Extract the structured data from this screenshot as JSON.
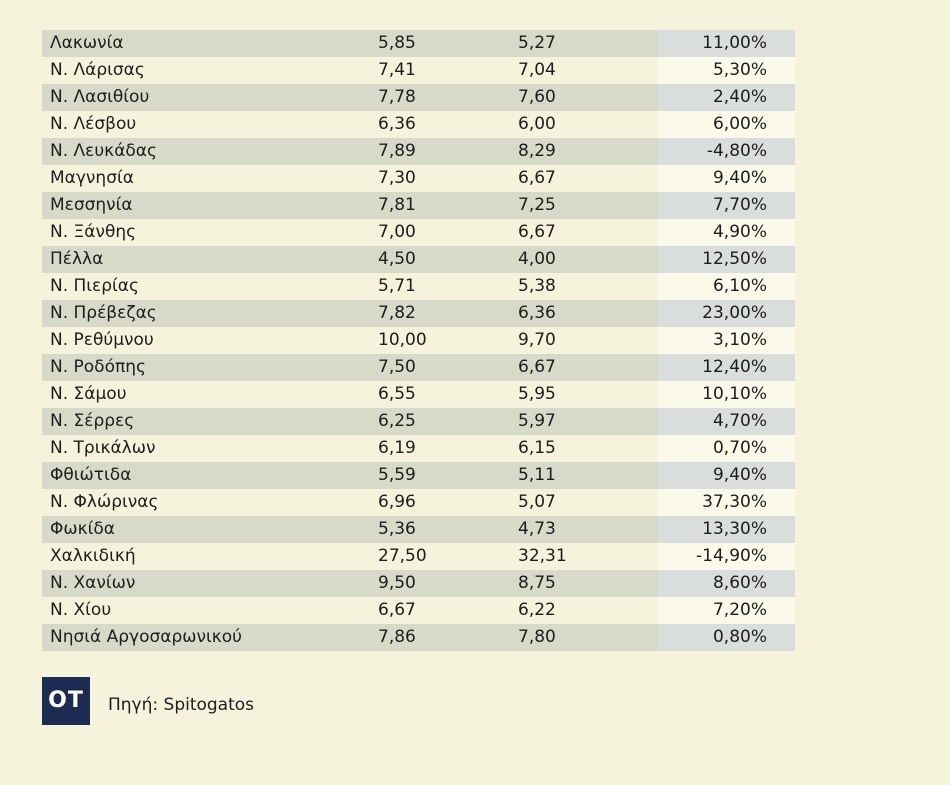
{
  "chart_data": {
    "type": "table",
    "rows": [
      [
        "Λακωνία",
        "5,85",
        "5,27",
        "11,00%"
      ],
      [
        "Ν. Λάρισας",
        "7,41",
        "7,04",
        "5,30%"
      ],
      [
        "Ν. Λασιθίου",
        "7,78",
        "7,60",
        "2,40%"
      ],
      [
        "Ν. Λέσβου",
        "6,36",
        "6,00",
        "6,00%"
      ],
      [
        "Ν. Λευκάδας",
        "7,89",
        "8,29",
        "-4,80%"
      ],
      [
        "Μαγνησία",
        "7,30",
        "6,67",
        "9,40%"
      ],
      [
        "Μεσσηνία",
        "7,81",
        "7,25",
        "7,70%"
      ],
      [
        "Ν. Ξάνθης",
        "7,00",
        "6,67",
        "4,90%"
      ],
      [
        "Πέλλα",
        "4,50",
        "4,00",
        "12,50%"
      ],
      [
        "Ν. Πιερίας",
        "5,71",
        "5,38",
        "6,10%"
      ],
      [
        "Ν. Πρέβεζας",
        "7,82",
        "6,36",
        "23,00%"
      ],
      [
        "Ν. Ρεθύμνου",
        "10,00",
        "9,70",
        "3,10%"
      ],
      [
        "Ν. Ροδόπης",
        "7,50",
        "6,67",
        "12,40%"
      ],
      [
        "Ν. Σάμου",
        "6,55",
        "5,95",
        "10,10%"
      ],
      [
        "Ν. Σέρρες",
        "6,25",
        "5,97",
        "4,70%"
      ],
      [
        "Ν. Τρικάλων",
        "6,19",
        "6,15",
        "0,70%"
      ],
      [
        "Φθιώτιδα",
        "5,59",
        "5,11",
        "9,40%"
      ],
      [
        "Ν. Φλώρινας",
        "6,96",
        "5,07",
        "37,30%"
      ],
      [
        "Φωκίδα",
        "5,36",
        "4,73",
        "13,30%"
      ],
      [
        "Χαλκιδική",
        "27,50",
        "32,31",
        "-14,90%"
      ],
      [
        "Ν. Χανίων",
        "9,50",
        "8,75",
        "8,60%"
      ],
      [
        "Ν. Χίου",
        "6,67",
        "6,22",
        "7,20%"
      ],
      [
        "Νησιά Αργοσαρωνικού",
        "7,86",
        "7,80",
        "0,80%"
      ]
    ]
  },
  "footer": {
    "logo_text": "OT",
    "source": "Πηγή: Spitogatos"
  },
  "colors": {
    "background": "#f6f3dc",
    "stripe": "#d7dac9",
    "stripe_pct": "#d9dddb",
    "plain_pct": "#fbfaea",
    "logo_bg": "#1c2b4f"
  }
}
